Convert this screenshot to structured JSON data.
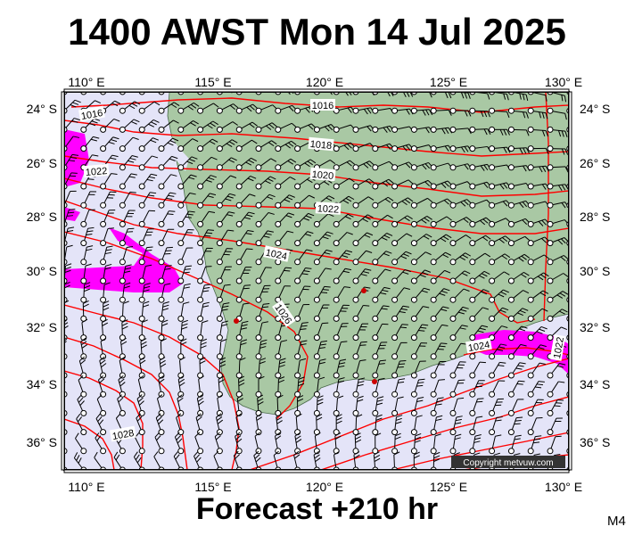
{
  "header": {
    "title": "1400 AWST Mon 14 Jul 2025"
  },
  "footer": {
    "forecast": "Forecast +210 hr",
    "model": "M4"
  },
  "map": {
    "lon_ticks": [
      "110° E",
      "115° E",
      "120° E",
      "125° E",
      "130° E"
    ],
    "lat_ticks": [
      "24° S",
      "26° S",
      "28° S",
      "30° S",
      "32° S",
      "34° S",
      "36° S"
    ],
    "isobar_labels": [
      "1016",
      "1018",
      "1020",
      "1022",
      "1024",
      "1026",
      "1028",
      "1026",
      "1022",
      "1024",
      "1022"
    ],
    "copyright": "Copyright metvuw.com",
    "colors": {
      "sea": "#e4e4f8",
      "land": "#a9c8a4",
      "isobar": "#ff0000",
      "rain": "#ff00ff",
      "wind": "#000000"
    }
  }
}
